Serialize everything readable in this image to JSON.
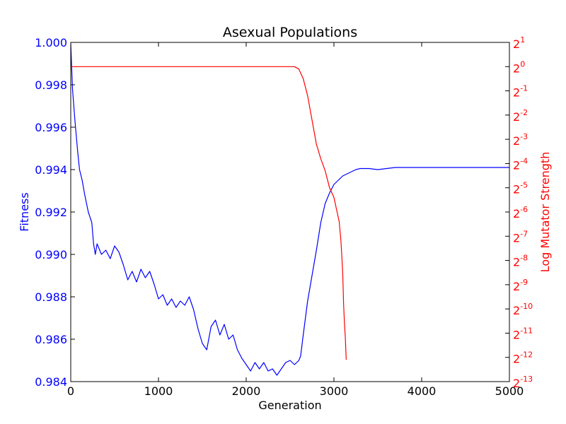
{
  "chart_data": {
    "type": "line",
    "title": "Asexual Populations",
    "xlabel": "Generation",
    "ylabel_left": "Fitness",
    "ylabel_right": "Log Mutator Strength",
    "xlim": [
      0,
      5000
    ],
    "ylim_left": [
      0.984,
      1.0
    ],
    "ylim_right_exponent": [
      -13,
      1
    ],
    "x_ticks": [
      "0",
      "1000",
      "2000",
      "3000",
      "4000",
      "5000"
    ],
    "x_tick_values": [
      0,
      1000,
      2000,
      3000,
      4000,
      5000
    ],
    "y_left_ticks": [
      "0.984",
      "0.986",
      "0.988",
      "0.990",
      "0.992",
      "0.994",
      "0.996",
      "0.998",
      "1.000"
    ],
    "y_left_tick_values": [
      0.984,
      0.986,
      0.988,
      0.99,
      0.992,
      0.994,
      0.996,
      0.998,
      1.0
    ],
    "y_right_tick_exponents": [
      -13,
      -12,
      -11,
      -10,
      -9,
      -8,
      -7,
      -6,
      -5,
      -4,
      -3,
      -2,
      -1,
      0,
      1
    ],
    "y_right_tick_base": "2",
    "colors": {
      "fitness": "#0000ff",
      "mutator": "#ff0000",
      "axis": "#000000"
    },
    "series": [
      {
        "axis": "left",
        "color": "#0000ff",
        "x": [
          0,
          20,
          50,
          80,
          100,
          130,
          160,
          200,
          240,
          260,
          280,
          300,
          350,
          400,
          450,
          500,
          550,
          600,
          650,
          700,
          750,
          800,
          850,
          900,
          950,
          1000,
          1050,
          1100,
          1150,
          1200,
          1250,
          1300,
          1350,
          1400,
          1450,
          1500,
          1550,
          1600,
          1650,
          1700,
          1750,
          1800,
          1850,
          1900,
          1950,
          2000,
          2050,
          2100,
          2150,
          2200,
          2250,
          2300,
          2350,
          2400,
          2450,
          2500,
          2550,
          2600,
          2620,
          2650,
          2700,
          2750,
          2800,
          2850,
          2900,
          2950,
          3000,
          3050,
          3100,
          3150,
          3200,
          3250,
          3300,
          3400,
          3500,
          3600,
          3700,
          3800,
          4000,
          4500,
          5000
        ],
        "values": [
          0.99995,
          0.9978,
          0.9962,
          0.9948,
          0.994,
          0.9935,
          0.9928,
          0.992,
          0.9915,
          0.9905,
          0.99,
          0.9905,
          0.99,
          0.9902,
          0.9898,
          0.9904,
          0.9901,
          0.9895,
          0.9888,
          0.9892,
          0.9887,
          0.9893,
          0.9889,
          0.9892,
          0.9886,
          0.9879,
          0.9881,
          0.9876,
          0.9879,
          0.9875,
          0.9878,
          0.9876,
          0.988,
          0.9874,
          0.9865,
          0.9858,
          0.9855,
          0.9866,
          0.9869,
          0.9862,
          0.9867,
          0.986,
          0.9862,
          0.9855,
          0.9851,
          0.9848,
          0.9845,
          0.9849,
          0.9846,
          0.9849,
          0.9845,
          0.9846,
          0.9843,
          0.9846,
          0.9849,
          0.985,
          0.9848,
          0.985,
          0.9852,
          0.9862,
          0.9878,
          0.989,
          0.9902,
          0.9915,
          0.9924,
          0.9929,
          0.9933,
          0.9935,
          0.9937,
          0.9938,
          0.9939,
          0.994,
          0.99405,
          0.99405,
          0.994,
          0.99405,
          0.9941,
          0.9941,
          0.9941,
          0.9941,
          0.9941
        ]
      },
      {
        "axis": "right",
        "color": "#ff0000",
        "x": [
          0,
          500,
          1000,
          1500,
          2000,
          2400,
          2550,
          2600,
          2650,
          2700,
          2750,
          2800,
          2850,
          2900,
          2950,
          3000,
          3030,
          3060,
          3080,
          3100,
          3110,
          3120,
          3130,
          3140
        ],
        "values": [
          0,
          0,
          0,
          0,
          0,
          0,
          0,
          -0.1,
          -0.5,
          -1.2,
          -2.2,
          -3.2,
          -3.8,
          -4.3,
          -5.0,
          -5.4,
          -5.9,
          -6.4,
          -7.2,
          -8.5,
          -9.8,
          -10.6,
          -11.2,
          -12.1
        ]
      }
    ]
  }
}
